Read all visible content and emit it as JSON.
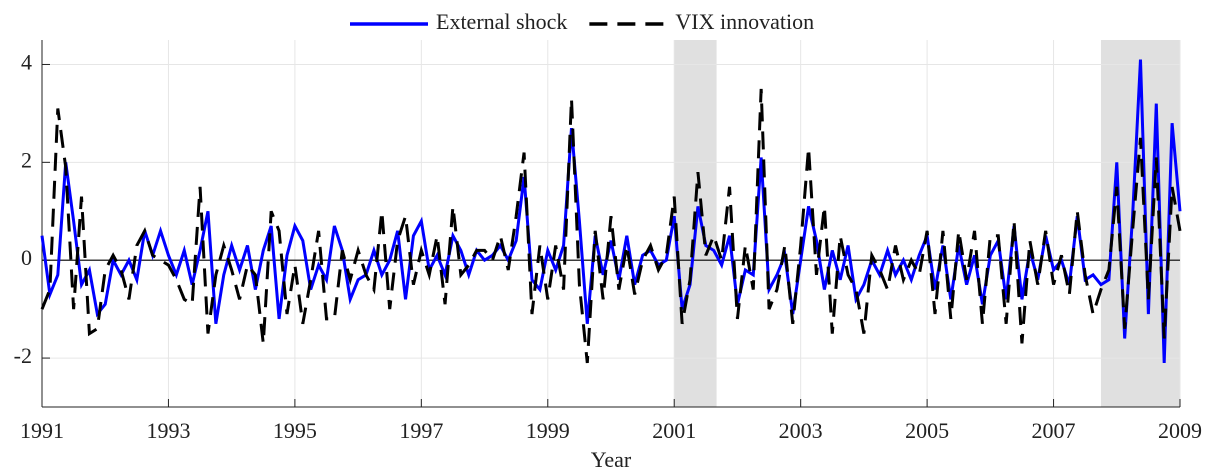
{
  "chart_data": {
    "type": "line",
    "xlabel": "Year",
    "xlim": [
      1991,
      2009
    ],
    "ylim": [
      -3,
      4.5
    ],
    "xticks": [
      1991,
      1993,
      1995,
      1997,
      1999,
      2001,
      2003,
      2005,
      2007,
      2009
    ],
    "yticks": [
      -2,
      0,
      2,
      4
    ],
    "grid": true,
    "legend": "top",
    "hline": 0,
    "shaded": [
      [
        2001,
        2001.67
      ],
      [
        2007.75,
        2009
      ]
    ],
    "shade_color": "#e0e0e0",
    "x": [
      1991,
      1991.125,
      1991.25,
      1991.375,
      1991.5,
      1991.625,
      1991.75,
      1991.875,
      1992,
      1992.125,
      1992.25,
      1992.375,
      1992.5,
      1992.625,
      1992.75,
      1992.875,
      1993,
      1993.125,
      1993.25,
      1993.375,
      1993.5,
      1993.625,
      1993.75,
      1993.875,
      1994,
      1994.125,
      1994.25,
      1994.375,
      1994.5,
      1994.625,
      1994.75,
      1994.875,
      1995,
      1995.125,
      1995.25,
      1995.375,
      1995.5,
      1995.625,
      1995.75,
      1995.875,
      1996,
      1996.125,
      1996.25,
      1996.375,
      1996.5,
      1996.625,
      1996.75,
      1996.875,
      1997,
      1997.125,
      1997.25,
      1997.375,
      1997.5,
      1997.625,
      1997.75,
      1997.875,
      1998,
      1998.125,
      1998.25,
      1998.375,
      1998.5,
      1998.625,
      1998.75,
      1998.875,
      1999,
      1999.125,
      1999.25,
      1999.375,
      1999.5,
      1999.625,
      1999.75,
      1999.875,
      2000,
      2000.125,
      2000.25,
      2000.375,
      2000.5,
      2000.625,
      2000.75,
      2000.875,
      2001,
      2001.125,
      2001.25,
      2001.375,
      2001.5,
      2001.625,
      2001.75,
      2001.875,
      2002,
      2002.125,
      2002.25,
      2002.375,
      2002.5,
      2002.625,
      2002.75,
      2002.875,
      2003,
      2003.125,
      2003.25,
      2003.375,
      2003.5,
      2003.625,
      2003.75,
      2003.875,
      2004,
      2004.125,
      2004.25,
      2004.375,
      2004.5,
      2004.625,
      2004.75,
      2004.875,
      2005,
      2005.125,
      2005.25,
      2005.375,
      2005.5,
      2005.625,
      2005.75,
      2005.875,
      2006,
      2006.125,
      2006.25,
      2006.375,
      2006.5,
      2006.625,
      2006.75,
      2006.875,
      2007,
      2007.125,
      2007.25,
      2007.375,
      2007.5,
      2007.625,
      2007.75,
      2007.875,
      2008,
      2008.125,
      2008.25,
      2008.375,
      2008.5,
      2008.625,
      2008.75,
      2008.875,
      2009
    ],
    "series": [
      {
        "name": "External shock",
        "color": "#0000ff",
        "dash": "solid",
        "values": [
          0.5,
          -0.7,
          -0.3,
          2.0,
          0.8,
          -0.5,
          -0.2,
          -1.1,
          -0.9,
          0,
          -0.3,
          0.0,
          -0.4,
          0.6,
          0.1,
          0.6,
          0.1,
          -0.3,
          0.2,
          -0.5,
          0.2,
          1.0,
          -1.3,
          -0.3,
          0.3,
          -0.2,
          0.3,
          -0.6,
          0.2,
          0.7,
          -1.2,
          0.1,
          0.7,
          0.4,
          -0.6,
          -0.1,
          -0.4,
          0.7,
          0.2,
          -0.8,
          -0.4,
          -0.3,
          0.2,
          -0.3,
          0.0,
          0.6,
          -0.8,
          0.5,
          0.8,
          -0.2,
          0.1,
          -0.3,
          0.5,
          0.2,
          -0.3,
          0.2,
          0.0,
          0.1,
          0.3,
          0.0,
          0.4,
          1.7,
          -0.4,
          -0.6,
          0.2,
          -0.2,
          0.3,
          2.7,
          0.8,
          -1.3,
          0.5,
          -0.3,
          0.4,
          -0.4,
          0.5,
          -0.5,
          0.1,
          0.2,
          -0.1,
          0.0,
          0.9,
          -1.0,
          -0.5,
          1.1,
          0.3,
          0.2,
          -0.1,
          0.5,
          -0.9,
          -0.2,
          -0.3,
          2.1,
          -0.6,
          -0.3,
          0.1,
          -1.1,
          0.0,
          1.1,
          0.4,
          -0.6,
          0.2,
          -0.4,
          0.3,
          -0.8,
          -0.5,
          0.0,
          -0.3,
          0.2,
          -0.3,
          0.0,
          -0.4,
          0.1,
          0.5,
          -0.6,
          0.3,
          -0.8,
          0.3,
          -0.5,
          0.1,
          -0.9,
          0.1,
          0.4,
          -0.8,
          0.7,
          -0.8,
          0.2,
          -0.4,
          0.5,
          -0.2,
          0.0,
          -0.5,
          0.9,
          -0.4,
          -0.3,
          -0.5,
          -0.4,
          2.0,
          -1.6,
          0.9,
          4.1,
          -1.1,
          3.2,
          -2.1,
          2.8,
          1.0
        ]
      },
      {
        "name": "VIX innovation",
        "color": "#000000",
        "dash": "dashed",
        "values": [
          -1.0,
          -0.6,
          3.1,
          1.9,
          -1.0,
          1.3,
          -1.5,
          -1.4,
          -0.2,
          0.1,
          -0.2,
          -0.8,
          0.3,
          0.6,
          0.1,
          0.0,
          -0.1,
          -0.4,
          -0.8,
          -0.9,
          1.5,
          -1.5,
          -0.3,
          0.3,
          -0.2,
          -0.8,
          -0.1,
          -0.3,
          -1.7,
          1.0,
          0.6,
          -1.1,
          -0.1,
          -1.3,
          -0.4,
          0.6,
          -1.2,
          -1.2,
          0.2,
          -0.4,
          0.2,
          -0.3,
          -0.6,
          1.0,
          -1.0,
          0.4,
          0.9,
          -0.5,
          0.2,
          -0.3,
          0.5,
          -0.9,
          1.1,
          -0.3,
          -0.1,
          0.2,
          0.2,
          0.0,
          0.5,
          -0.2,
          0.9,
          2.2,
          -1.1,
          0.3,
          -0.8,
          0.3,
          -0.6,
          3.3,
          -0.5,
          -2.1,
          0.6,
          -0.8,
          0.9,
          -0.6,
          0.3,
          -0.7,
          0.0,
          0.3,
          -0.2,
          0.1,
          1.3,
          -1.3,
          -0.4,
          1.8,
          0.1,
          0.5,
          0.0,
          1.5,
          -1.2,
          0.3,
          -0.6,
          3.5,
          -1.0,
          -0.6,
          0.3,
          -1.3,
          0.3,
          2.3,
          -0.3,
          1.1,
          -1.5,
          0.5,
          -0.3,
          -0.6,
          -1.5,
          0.1,
          -0.2,
          -0.6,
          0.3,
          -0.4,
          0.0,
          -0.3,
          0.6,
          -1.1,
          0.6,
          -1.2,
          0.6,
          -0.4,
          0.6,
          -1.3,
          0.5,
          0.5,
          -1.3,
          0.8,
          -1.7,
          0.4,
          -0.5,
          0.6,
          -0.5,
          0.1,
          -0.7,
          1.0,
          -0.3,
          -1.1,
          -0.6,
          -0.2,
          1.5,
          -1.4,
          0.6,
          2.5,
          -0.8,
          2.1,
          -1.6,
          1.5,
          0.6
        ]
      }
    ]
  }
}
